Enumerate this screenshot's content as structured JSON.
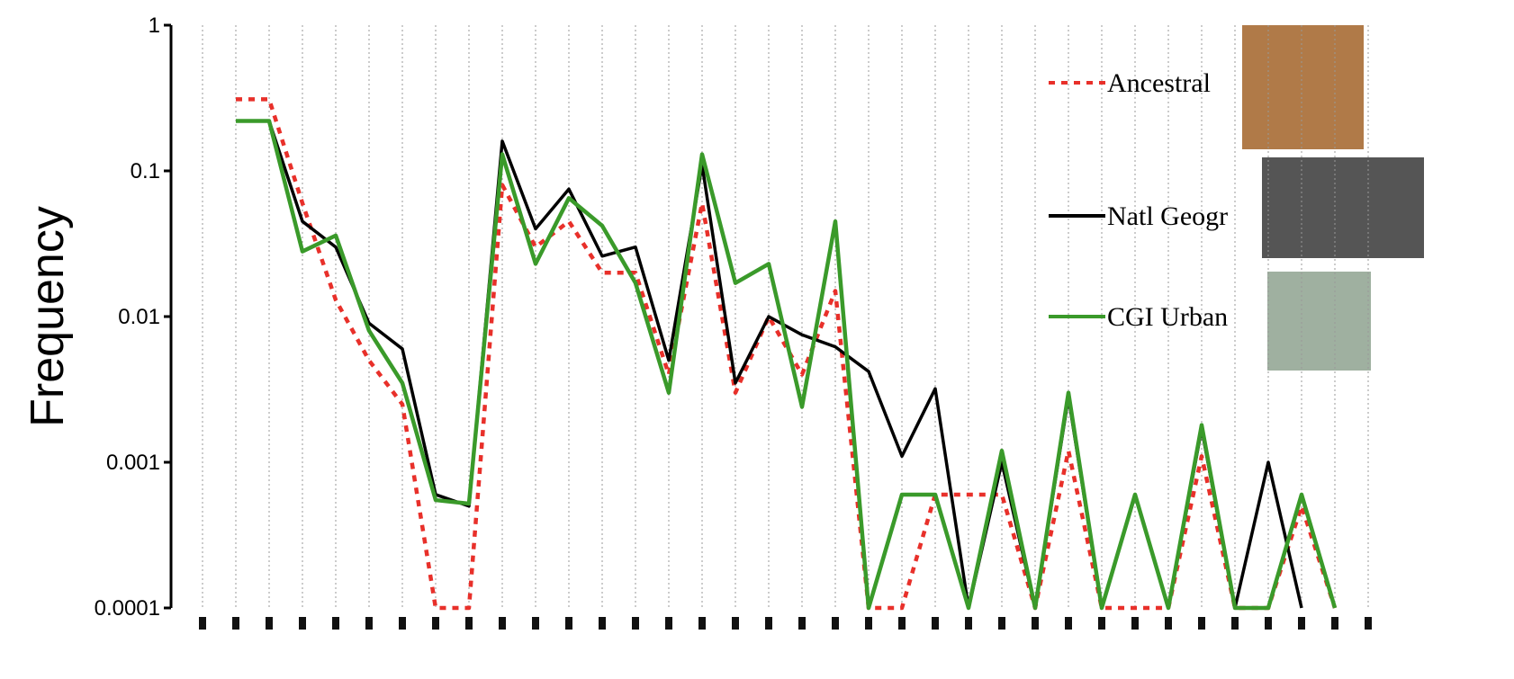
{
  "chart_data": {
    "type": "line",
    "y_label": "Frequency",
    "log_scale": true,
    "grid": true,
    "legend": "upper right",
    "categories": [
      null,
      null,
      null,
      null,
      null,
      null,
      null,
      null,
      null,
      null,
      null,
      null,
      null,
      null,
      null,
      null,
      null,
      null,
      null,
      null,
      null,
      null,
      null,
      null,
      null,
      null,
      null,
      null,
      null,
      null,
      null,
      null,
      null,
      null,
      null,
      null
    ],
    "ylim": [
      0.0001,
      1
    ],
    "yticks": [
      0.0001,
      0.001,
      0.01,
      0.1,
      1
    ],
    "series": [
      {
        "name": "Ancestral",
        "color": "#e8302a",
        "style": "dotted",
        "values": [
          null,
          0.31,
          0.31,
          0.06,
          0.013,
          0.005,
          0.0025,
          0.0001,
          0.0001,
          0.08,
          0.03,
          0.045,
          0.02,
          0.02,
          0.004,
          0.06,
          0.003,
          0.01,
          0.004,
          0.015,
          0.0001,
          0.0001,
          0.0006,
          0.0006,
          0.0006,
          0.0001,
          0.0012,
          0.0001,
          0.0001,
          0.0001,
          0.0011,
          0.0001,
          0.0001,
          0.0005,
          0.0001,
          null
        ]
      },
      {
        "name": "Natl Geogr",
        "color": "#000000",
        "style": "solid",
        "values": [
          null,
          0.22,
          0.22,
          0.045,
          0.03,
          0.009,
          0.006,
          0.0006,
          0.0005,
          0.16,
          0.04,
          0.075,
          0.026,
          0.03,
          0.005,
          0.11,
          0.0035,
          0.01,
          0.0075,
          0.0062,
          0.0042,
          0.0011,
          0.0032,
          0.0001,
          0.001,
          0.0001,
          0.0028,
          0.0001,
          0.0006,
          0.0001,
          0.0017,
          0.0001,
          0.001,
          0.0001,
          null,
          null
        ]
      },
      {
        "name": "CGI Urban",
        "color": "#3a9a2a",
        "style": "solid",
        "values": [
          null,
          0.22,
          0.22,
          0.028,
          0.036,
          0.008,
          0.0035,
          0.00055,
          0.00052,
          0.13,
          0.023,
          0.065,
          0.042,
          0.017,
          0.003,
          0.13,
          0.017,
          0.023,
          0.0024,
          0.045,
          0.0001,
          0.0006,
          0.0006,
          0.0001,
          0.0012,
          0.0001,
          0.003,
          0.0001,
          0.0006,
          0.0001,
          0.0018,
          0.0001,
          0.0001,
          0.0006,
          0.0001,
          null
        ]
      }
    ]
  }
}
